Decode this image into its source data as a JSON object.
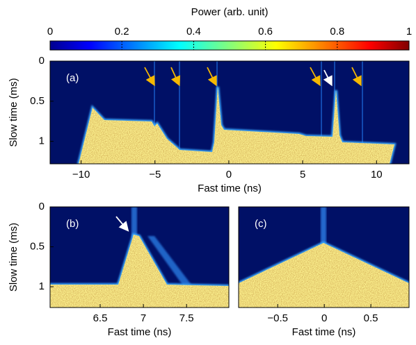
{
  "chart_data": [
    {
      "type": "colorbar",
      "title": "Power (arb. unit)",
      "xlim": [
        0,
        1
      ],
      "xticks": [
        0,
        0.2,
        0.4,
        0.6,
        0.8,
        1
      ]
    },
    {
      "type": "heatmap",
      "label": "(a)",
      "xlabel": "Fast time (ns)",
      "ylabel": "Slow time (ms)",
      "xlim": [
        -12.1,
        12.2
      ],
      "xticks": [
        {
          "value": -10,
          "label": "−10"
        },
        {
          "value": -5,
          "label": "−5"
        },
        0,
        5,
        10
      ],
      "ylim": [
        1.28,
        0
      ],
      "yticks": [
        0,
        0.5,
        1
      ]
    },
    {
      "type": "heatmap",
      "label": "(b)",
      "xlabel": "Fast time (ns)",
      "ylabel": "Slow time (ms)",
      "xlim": [
        5.92,
        7.99
      ],
      "xticks": [
        6.5,
        7,
        7.5
      ],
      "ylim": [
        1.26,
        0
      ],
      "yticks": [
        0,
        0.5,
        1
      ]
    },
    {
      "type": "heatmap",
      "label": "(c)",
      "xlabel": "Fast time (ns)",
      "xlim": [
        -0.92,
        0.91
      ],
      "xticks": [
        {
          "value": -0.5,
          "label": "−0.5"
        },
        0,
        0.5
      ],
      "ylim": [
        1.26,
        0
      ]
    }
  ]
}
